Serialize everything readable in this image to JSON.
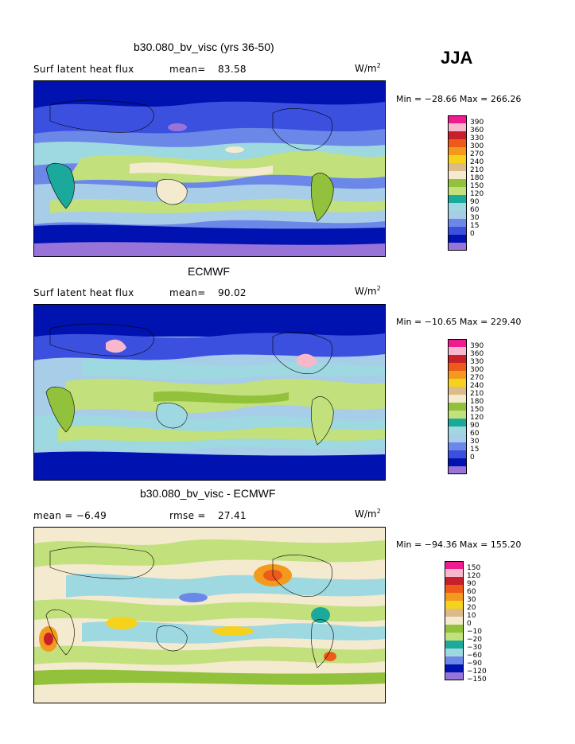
{
  "season": "JJA",
  "panels": [
    {
      "title": "b30.080_bv_visc (yrs 36-50)",
      "left_label": "Surf latent heat flux",
      "stat_label": "mean=",
      "stat_value": "83.58",
      "units": "W/m",
      "units_sup": "2",
      "minmax": "Min = −28.66 Max = 266.26",
      "colorbar": [
        "390",
        "360",
        "330",
        "300",
        "270",
        "240",
        "210",
        "180",
        "150",
        "120",
        "90",
        "60",
        "30",
        "15",
        "0"
      ]
    },
    {
      "title": "ECMWF",
      "left_label": "Surf latent heat flux",
      "stat_label": "mean=",
      "stat_value": "90.02",
      "units": "W/m",
      "units_sup": "2",
      "minmax": "Min = −10.65 Max = 229.40",
      "colorbar": [
        "390",
        "360",
        "330",
        "300",
        "270",
        "240",
        "210",
        "180",
        "150",
        "120",
        "90",
        "60",
        "30",
        "15",
        "0"
      ]
    },
    {
      "title": "b30.080_bv_visc - ECMWF",
      "left_label": "mean =   −6.49",
      "stat_label": "rmse =",
      "stat_value": "27.41",
      "units": "W/m",
      "units_sup": "2",
      "minmax": "Min = −94.36 Max = 155.20",
      "colorbar": [
        "150",
        "120",
        "90",
        "60",
        "30",
        "20",
        "10",
        "0",
        "−10",
        "−20",
        "−30",
        "−60",
        "−90",
        "−120",
        "−150"
      ]
    }
  ],
  "colors": {
    "abs_scale": [
      "#ee1c8e",
      "#f7b8cc",
      "#c8202a",
      "#ee5a1c",
      "#f39a1c",
      "#f7d21c",
      "#dcba8a",
      "#f4ead0",
      "#92c13c",
      "#c2e07c",
      "#1aa99a",
      "#9ed8e0",
      "#a8cde8",
      "#6b87e8",
      "#3c50e0",
      "#0012b0",
      "#9874d8"
    ],
    "diff_scale": [
      "#ee1c8e",
      "#f7b8cc",
      "#c8202a",
      "#ee5a1c",
      "#f39a1c",
      "#f7d21c",
      "#dcba8a",
      "#f4ead0",
      "#92c13c",
      "#c2e07c",
      "#1aa99a",
      "#9ed8e0",
      "#6b87e8",
      "#0012b0",
      "#9874d8"
    ]
  }
}
